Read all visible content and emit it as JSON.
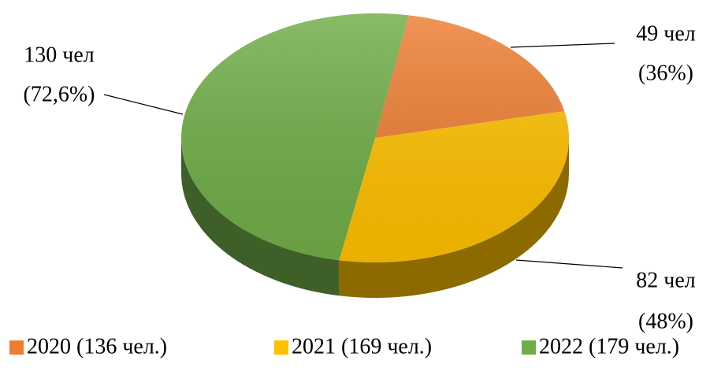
{
  "chart_data": {
    "type": "pie",
    "categories": [
      "2020 (136 чел.)",
      "2021 (169 чел.)",
      "2022 (179 чел.)"
    ],
    "values": [
      49,
      82,
      130
    ],
    "value_labels": [
      "49 чел",
      "82 чел",
      "130 чел"
    ],
    "share_labels": [
      "(36%)",
      "(48%)",
      "(72,6%)"
    ],
    "colors": [
      "#ed7d31",
      "#ffc000",
      "#70ad47"
    ],
    "legend": "bottom"
  }
}
